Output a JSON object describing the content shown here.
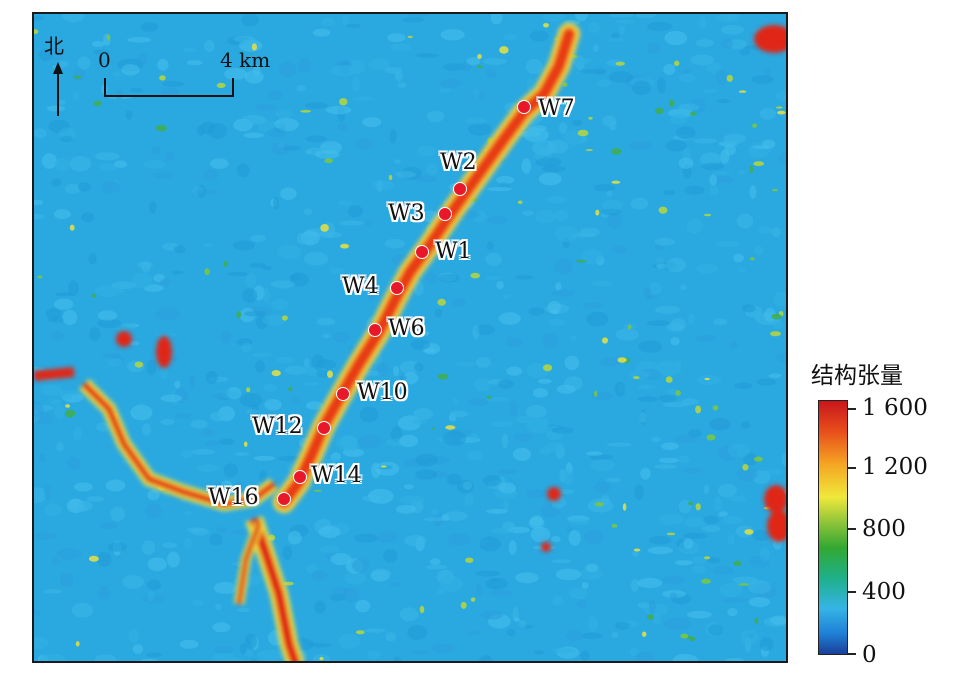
{
  "map": {
    "north_label": "北",
    "scale_start": "0",
    "scale_end": "4 km",
    "wells": [
      {
        "label": "W7"
      },
      {
        "label": "W2"
      },
      {
        "label": "W3"
      },
      {
        "label": "W1"
      },
      {
        "label": "W4"
      },
      {
        "label": "W6"
      },
      {
        "label": "W10"
      },
      {
        "label": "W12"
      },
      {
        "label": "W14"
      },
      {
        "label": "W16"
      }
    ]
  },
  "legend": {
    "title": "结构张量",
    "ticks": [
      "1 600",
      "1 200",
      "800",
      "400",
      "0"
    ],
    "colors": {
      "low": "#1a3f9a",
      "mid_low": "#35b4e6",
      "mid": "#33a832",
      "mid_high": "#f0e83a",
      "high": "#c8161c"
    }
  }
}
